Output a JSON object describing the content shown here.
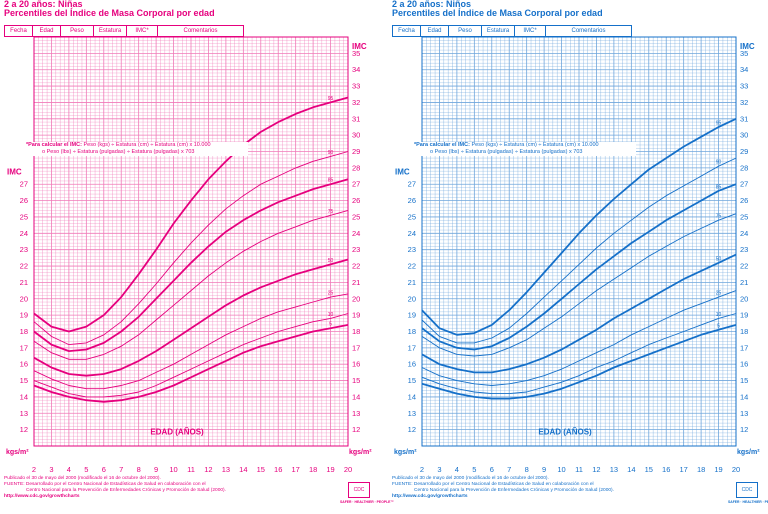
{
  "colors": {
    "girls": "#e6007e",
    "boys": "#1570c9",
    "grid_girls": "#f07ab8",
    "grid_boys": "#6fa6dc"
  },
  "panels": [
    {
      "title_line1": "2 a 20 años: Niñas",
      "title_line2": "Percentiles del Índice de Masa Corporal por edad",
      "table_headers": [
        "Fecha",
        "Edad",
        "Peso",
        "Estatura",
        "IMC*",
        "Comentarios"
      ],
      "formula_line1_bold": "*Para calcular el IMC:",
      "formula_line1": "Peso (kgs) ÷ Estatura (cm) ÷ Estatura (cm) x 10.000",
      "formula_line2": "o Peso (lbs) ÷ Estatura (pulgadas) ÷ Estatura (pulgadas) x 703",
      "footer": [
        "Publicado el 30 de mayo del 2000 (modificado el 16 de octubre del 2000).",
        "FUENTE: Desarrollado por el Centro Nacional de Estadísticas de Salud en colaboración con el",
        "Centro Nacional para la Prevención de Enfermedades Crónicas y Promoción de Salud (2000).",
        "http://www.cdc.gov/growthcharts"
      ],
      "logo_caption": "SAFER · HEALTHIER · PEOPLE™",
      "logo_mark": "CDC"
    },
    {
      "title_line1": "2 a 20 años: Niños",
      "title_line2": "Percentiles del Índice de Masa Corporal por edad",
      "table_headers": [
        "Fecha",
        "Edad",
        "Peso",
        "Estatura",
        "IMC*",
        "Comentarios"
      ],
      "formula_line1_bold": "*Para calcular el IMC:",
      "formula_line1": "Peso (kgs) ÷ Estatura (cm) ÷ Estatura (cm) x 10.000",
      "formula_line2": "o Peso (lbs) ÷ Estatura (pulgadas) ÷ Estatura (pulgadas) x 703",
      "footer": [
        "Publicado el 30 de mayo del 2000 (modificado el 16 de octubre del 2000).",
        "FUENTE: Desarrollado por el Centro Nacional de Estadísticas de Salud en colaboración con el",
        "Centro Nacional para la Prevención de Enfermedades Crónicas y Promoción de Salud (2000).",
        "http://www.cdc.gov/growthcharts"
      ],
      "logo_caption": "SAFER · HEALTHIER · PEOPLE™",
      "logo_mark": "CDC"
    }
  ],
  "chart_data": [
    {
      "type": "line",
      "title": "2 a 20 años: Niñas",
      "xlabel": "EDAD (AÑOS)",
      "ylabel_top": "IMC",
      "ylabel_left": "IMC",
      "unit_label": "kgs/m²",
      "xlim": [
        2,
        20
      ],
      "ylim": [
        11,
        36
      ],
      "x_ticks": [
        2,
        3,
        4,
        5,
        6,
        7,
        8,
        9,
        10,
        11,
        12,
        13,
        14,
        15,
        16,
        17,
        18,
        19,
        20
      ],
      "y_ticks_right": [
        12,
        13,
        14,
        15,
        16,
        17,
        18,
        19,
        20,
        21,
        22,
        23,
        24,
        25,
        26,
        27,
        28,
        29,
        30,
        31,
        32,
        33,
        34,
        35
      ],
      "y_ticks_left": [
        12,
        13,
        14,
        15,
        16,
        17,
        18,
        19,
        20,
        21,
        22,
        23,
        24,
        25,
        26,
        27
      ],
      "x": [
        2,
        3,
        4,
        5,
        6,
        7,
        8,
        9,
        10,
        11,
        12,
        13,
        14,
        15,
        16,
        17,
        18,
        19,
        20
      ],
      "series": [
        {
          "name": "95",
          "values": [
            19.1,
            18.3,
            18.0,
            18.3,
            19.0,
            20.1,
            21.5,
            23.0,
            24.6,
            26.0,
            27.3,
            28.4,
            29.4,
            30.2,
            30.8,
            31.3,
            31.7,
            32.0,
            32.3
          ],
          "bold": true
        },
        {
          "name": "90",
          "values": [
            18.6,
            17.7,
            17.2,
            17.3,
            17.8,
            18.6,
            19.7,
            20.9,
            22.2,
            23.4,
            24.5,
            25.5,
            26.3,
            27.0,
            27.5,
            28.0,
            28.4,
            28.7,
            29.0
          ],
          "bold": false
        },
        {
          "name": "85",
          "values": [
            18.0,
            17.2,
            16.8,
            16.9,
            17.3,
            18.0,
            18.9,
            20.0,
            21.1,
            22.2,
            23.2,
            24.1,
            24.8,
            25.4,
            25.9,
            26.3,
            26.7,
            27.0,
            27.3
          ],
          "bold": true
        },
        {
          "name": "75",
          "values": [
            17.4,
            16.7,
            16.3,
            16.3,
            16.6,
            17.1,
            17.8,
            18.7,
            19.6,
            20.5,
            21.4,
            22.2,
            22.9,
            23.5,
            24.0,
            24.4,
            24.8,
            25.1,
            25.4
          ],
          "bold": false
        },
        {
          "name": "50",
          "values": [
            16.4,
            15.8,
            15.4,
            15.3,
            15.4,
            15.7,
            16.2,
            16.8,
            17.5,
            18.2,
            18.9,
            19.6,
            20.2,
            20.7,
            21.1,
            21.5,
            21.8,
            22.1,
            22.4
          ],
          "bold": true
        },
        {
          "name": "25",
          "values": [
            15.6,
            15.1,
            14.7,
            14.5,
            14.5,
            14.7,
            15.0,
            15.5,
            16.0,
            16.6,
            17.2,
            17.8,
            18.3,
            18.8,
            19.2,
            19.5,
            19.8,
            20.1,
            20.3
          ],
          "bold": false
        },
        {
          "name": "10",
          "values": [
            15.0,
            14.6,
            14.2,
            14.0,
            14.0,
            14.1,
            14.3,
            14.7,
            15.2,
            15.7,
            16.2,
            16.7,
            17.2,
            17.6,
            18.0,
            18.3,
            18.6,
            18.8,
            19.1
          ],
          "bold": false
        },
        {
          "name": "5",
          "values": [
            14.7,
            14.3,
            14.0,
            13.8,
            13.7,
            13.8,
            14.0,
            14.3,
            14.7,
            15.2,
            15.7,
            16.2,
            16.7,
            17.1,
            17.4,
            17.7,
            18.0,
            18.2,
            18.4
          ],
          "bold": true
        }
      ],
      "footer_url": "http://www.cdc.gov/growthcharts"
    },
    {
      "type": "line",
      "title": "2 a 20 años: Niños",
      "xlabel": "EDAD (AÑOS)",
      "ylabel_top": "IMC",
      "ylabel_left": "IMC",
      "unit_label": "kgs/m²",
      "xlim": [
        2,
        20
      ],
      "ylim": [
        11,
        36
      ],
      "x_ticks": [
        2,
        3,
        4,
        5,
        6,
        7,
        8,
        9,
        10,
        11,
        12,
        13,
        14,
        15,
        16,
        17,
        18,
        19,
        20
      ],
      "y_ticks_right": [
        12,
        13,
        14,
        15,
        16,
        17,
        18,
        19,
        20,
        21,
        22,
        23,
        24,
        25,
        26,
        27,
        28,
        29,
        30,
        31,
        32,
        33,
        34,
        35
      ],
      "y_ticks_left": [
        12,
        13,
        14,
        15,
        16,
        17,
        18,
        19,
        20,
        21,
        22,
        23,
        24,
        25,
        26,
        27
      ],
      "x": [
        2,
        3,
        4,
        5,
        6,
        7,
        8,
        9,
        10,
        11,
        12,
        13,
        14,
        15,
        16,
        17,
        18,
        19,
        20
      ],
      "series": [
        {
          "name": "95",
          "values": [
            19.3,
            18.2,
            17.8,
            17.9,
            18.4,
            19.3,
            20.4,
            21.6,
            22.8,
            24.0,
            25.1,
            26.1,
            27.0,
            27.9,
            28.6,
            29.3,
            29.9,
            30.5,
            31.0
          ],
          "bold": true
        },
        {
          "name": "90",
          "values": [
            18.7,
            17.7,
            17.3,
            17.3,
            17.6,
            18.2,
            19.1,
            20.1,
            21.1,
            22.1,
            23.1,
            24.0,
            24.8,
            25.6,
            26.3,
            26.9,
            27.5,
            28.1,
            28.6
          ],
          "bold": false
        },
        {
          "name": "85",
          "values": [
            18.2,
            17.4,
            17.0,
            16.9,
            17.1,
            17.6,
            18.3,
            19.1,
            20.0,
            20.9,
            21.8,
            22.6,
            23.4,
            24.1,
            24.8,
            25.4,
            26.0,
            26.6,
            27.0
          ],
          "bold": true
        },
        {
          "name": "75",
          "values": [
            17.7,
            17.0,
            16.6,
            16.5,
            16.6,
            17.0,
            17.5,
            18.2,
            18.9,
            19.7,
            20.5,
            21.2,
            21.9,
            22.6,
            23.2,
            23.8,
            24.3,
            24.8,
            25.2
          ],
          "bold": false
        },
        {
          "name": "50",
          "values": [
            16.6,
            16.0,
            15.7,
            15.5,
            15.5,
            15.7,
            16.0,
            16.4,
            16.9,
            17.5,
            18.1,
            18.8,
            19.4,
            20.0,
            20.6,
            21.2,
            21.7,
            22.2,
            22.7
          ],
          "bold": true
        },
        {
          "name": "25",
          "values": [
            15.8,
            15.3,
            15.0,
            14.8,
            14.7,
            14.8,
            15.0,
            15.3,
            15.7,
            16.2,
            16.7,
            17.2,
            17.8,
            18.3,
            18.8,
            19.3,
            19.7,
            20.1,
            20.5
          ],
          "bold": false
        },
        {
          "name": "10",
          "values": [
            15.2,
            14.8,
            14.5,
            14.3,
            14.2,
            14.2,
            14.3,
            14.6,
            14.9,
            15.3,
            15.8,
            16.2,
            16.7,
            17.2,
            17.6,
            18.0,
            18.4,
            18.8,
            19.1
          ],
          "bold": false
        },
        {
          "name": "5",
          "values": [
            14.8,
            14.5,
            14.2,
            14.0,
            13.9,
            13.9,
            14.0,
            14.2,
            14.5,
            14.9,
            15.3,
            15.8,
            16.2,
            16.6,
            17.0,
            17.4,
            17.8,
            18.1,
            18.4
          ],
          "bold": true
        }
      ],
      "footer_url": "http://www.cdc.gov/growthcharts"
    }
  ]
}
